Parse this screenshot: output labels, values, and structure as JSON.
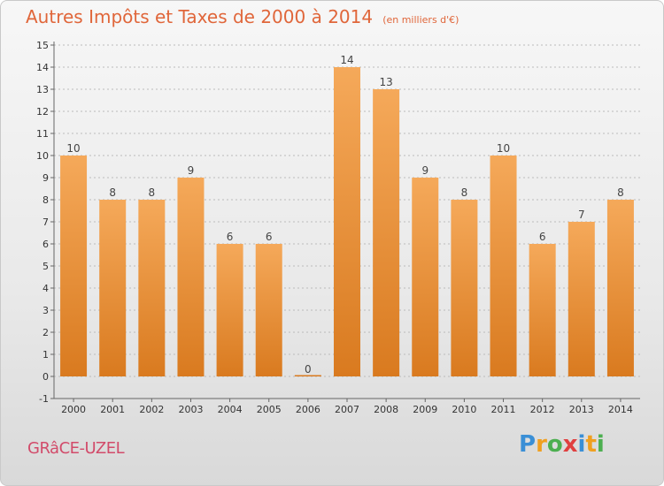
{
  "header": {
    "title": "Autres Impôts et Taxes de 2000 à 2014",
    "unit": "(en milliers d'€)"
  },
  "footer": {
    "city": "GRâCE-UZEL",
    "brand": "Proxiti",
    "brand_colors": [
      "#3a8fd6",
      "#f0a020",
      "#4caf50",
      "#e04040",
      "#3a8fd6",
      "#f0a020",
      "#4caf50"
    ]
  },
  "colors": {
    "bar_light": "#f5a95a",
    "bar_dark": "#d97a1f",
    "title": "#e0663a",
    "grid": "#bbbbbb"
  },
  "chart_data": {
    "type": "bar",
    "title": "Autres Impôts et Taxes de 2000 à 2014",
    "subtitle": "(en milliers d'€)",
    "xlabel": "",
    "ylabel": "",
    "categories": [
      "2000",
      "2001",
      "2002",
      "2003",
      "2004",
      "2005",
      "2006",
      "2007",
      "2008",
      "2009",
      "2010",
      "2011",
      "2012",
      "2013",
      "2014"
    ],
    "values": [
      10,
      8,
      8,
      9,
      6,
      6,
      0,
      14,
      13,
      9,
      8,
      10,
      6,
      7,
      8
    ],
    "value_labels": [
      "10",
      "8",
      "8",
      "9",
      "6",
      "6",
      "0",
      "14",
      "13",
      "9",
      "8",
      "10",
      "6",
      "7",
      "8"
    ],
    "ylim": [
      -1,
      15
    ],
    "y_tick_labels": [
      "-1",
      "0",
      "1",
      "2",
      "3",
      "4",
      "5",
      "6",
      "7",
      "8",
      "9",
      "10",
      "11",
      "12",
      "13",
      "14",
      "15"
    ],
    "grid": true
  }
}
